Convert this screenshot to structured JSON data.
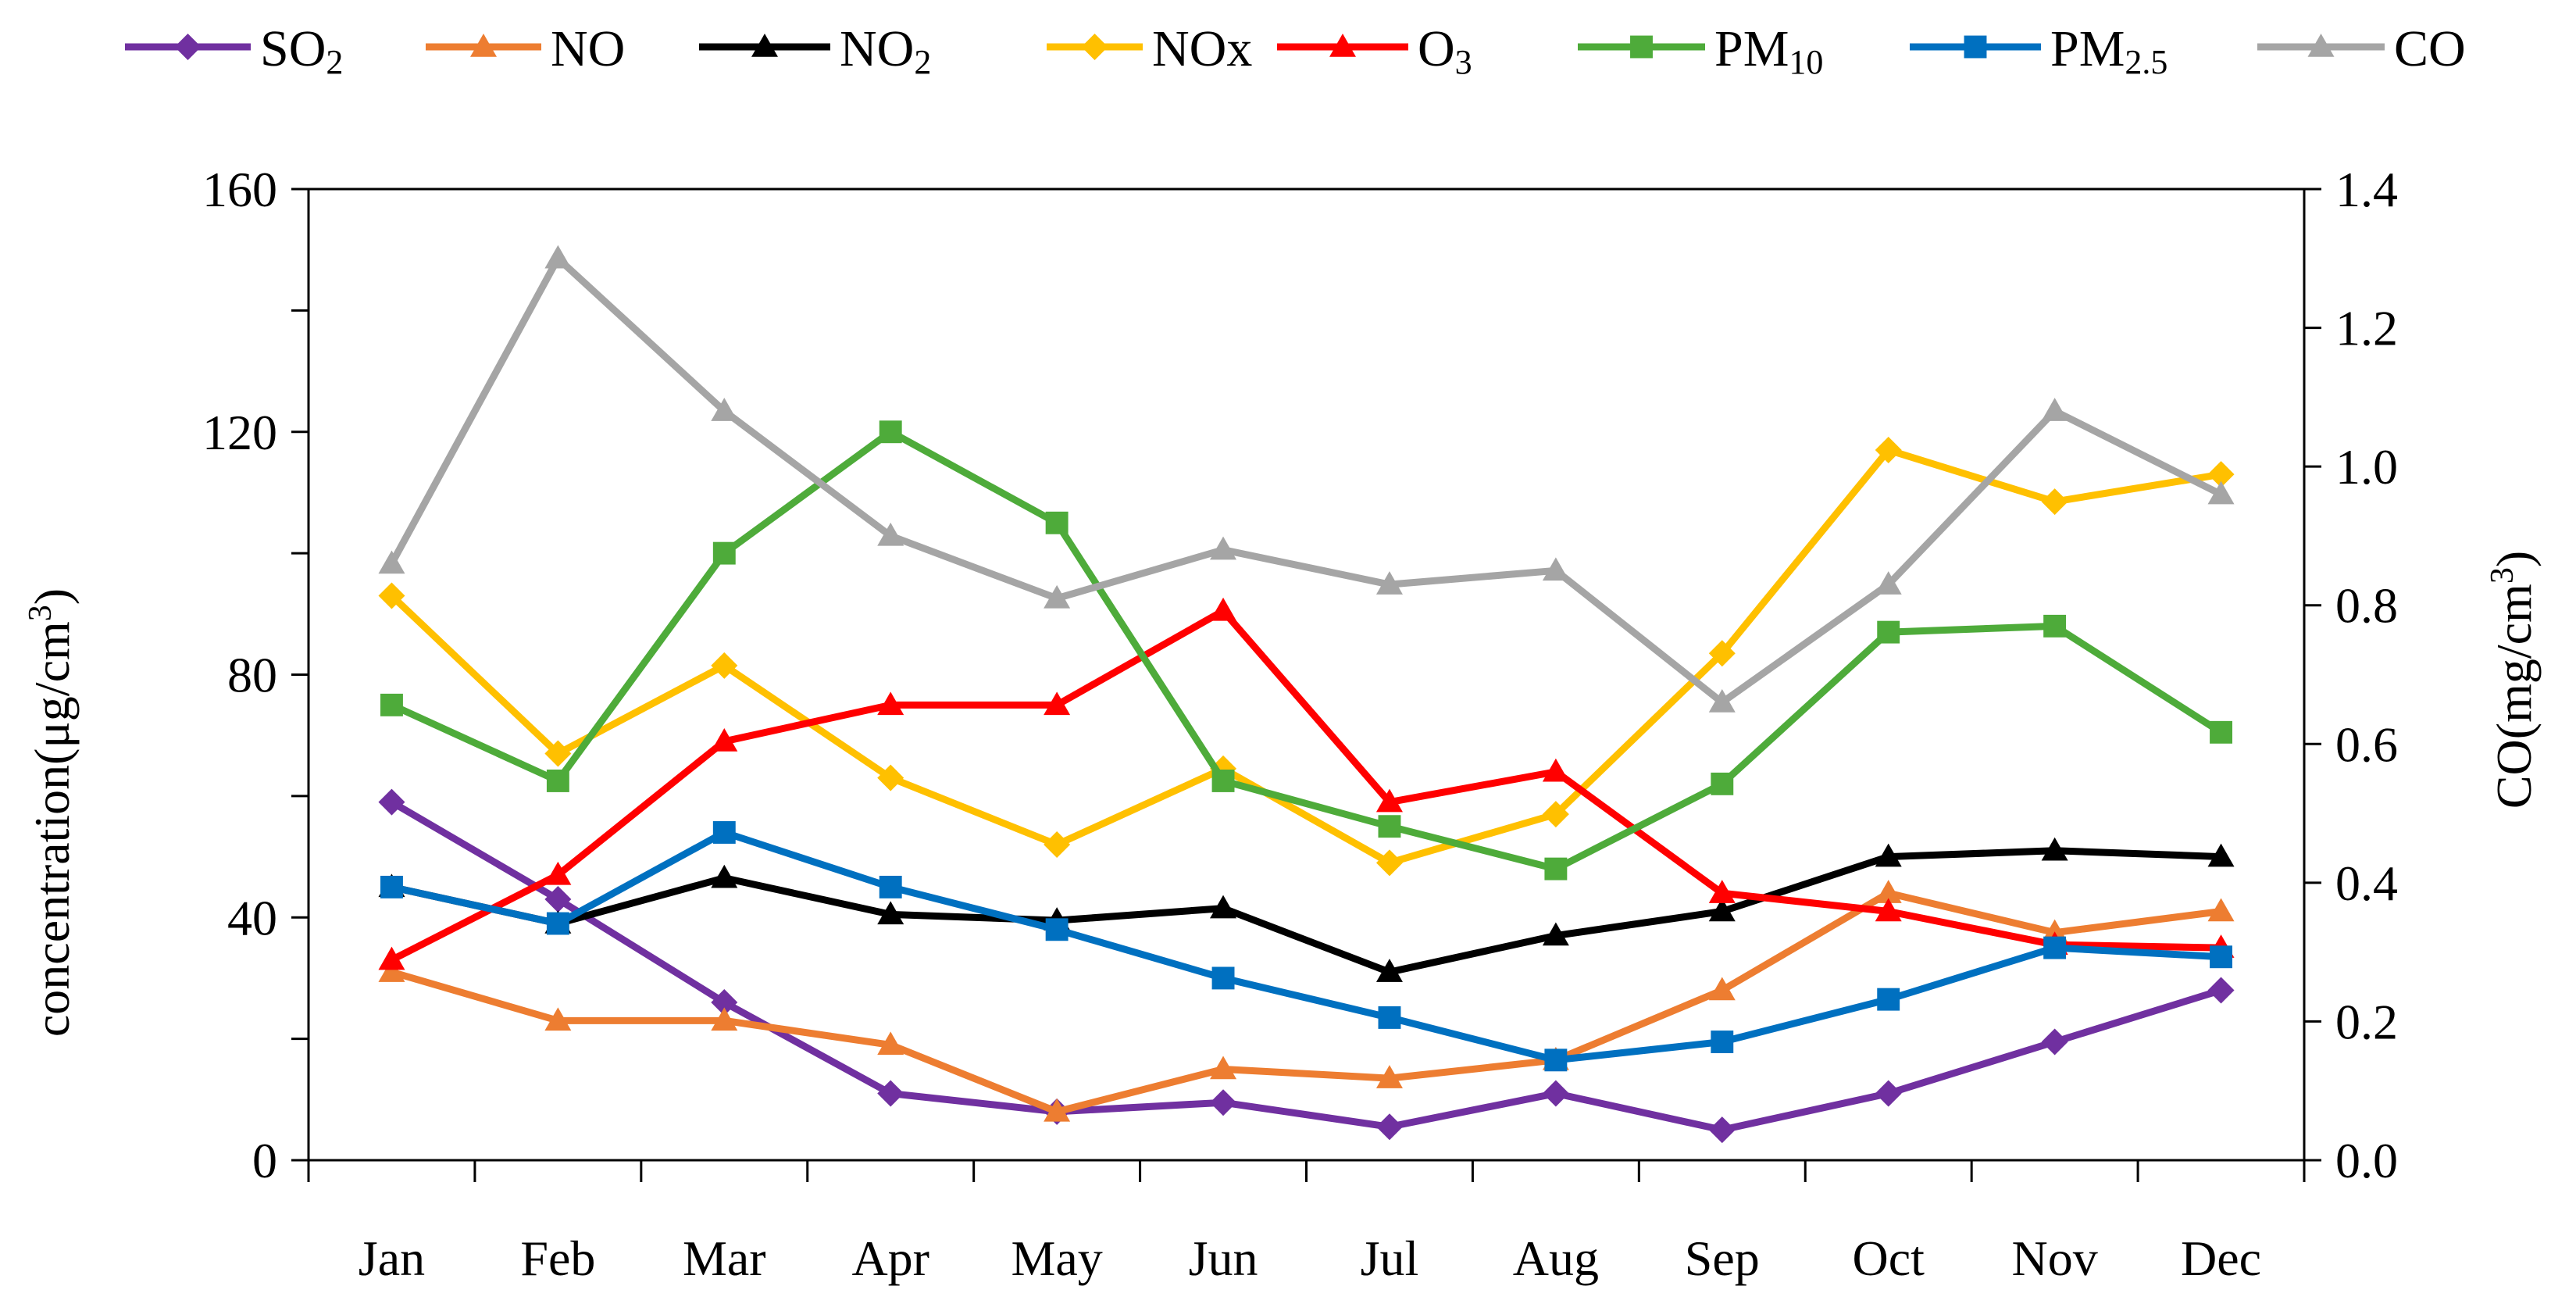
{
  "chart_data": {
    "type": "line",
    "categories": [
      "Jan",
      "Feb",
      "Mar",
      "Apr",
      "May",
      "Jun",
      "Jul",
      "Aug",
      "Sep",
      "Oct",
      "Nov",
      "Dec"
    ],
    "ylabel": "concentration(μg/cm",
    "ylabel_sup": "3",
    "ylabel_close": ")",
    "ylim": [
      0,
      160
    ],
    "yticks": [
      "0",
      "40",
      "80",
      "120",
      "160"
    ],
    "y2label": "CO(mg/cm",
    "y2label_sup": "3",
    "y2label_close": ")",
    "y2lim": [
      0,
      1.4
    ],
    "y2ticks": [
      "0.0",
      "0.2",
      "0.4",
      "0.6",
      "0.8",
      "1.0",
      "1.2",
      "1.4"
    ],
    "legend_position": "top",
    "series": [
      {
        "name": "SO",
        "sub": "2",
        "color": "#7030A0",
        "marker": "diamond",
        "axis": "left",
        "values": [
          59,
          43,
          26,
          11,
          8,
          9.5,
          5.5,
          11,
          5,
          11,
          19.5,
          28
        ]
      },
      {
        "name": "NO",
        "sub": "",
        "color": "#ED7D31",
        "marker": "triangle",
        "axis": "left",
        "values": [
          31,
          23,
          23,
          19,
          8,
          15,
          13.5,
          16.5,
          28,
          44,
          37.5,
          41
        ]
      },
      {
        "name": "NO",
        "sub": "2",
        "color": "#000000",
        "marker": "triangle",
        "axis": "left",
        "values": [
          45,
          39,
          46.5,
          40.5,
          39.5,
          41.5,
          31,
          37,
          41,
          50,
          51,
          50
        ]
      },
      {
        "name": "NOx",
        "sub": "",
        "color": "#FFC000",
        "marker": "diamond",
        "axis": "left",
        "values": [
          93,
          67,
          81.5,
          63,
          52,
          64.5,
          49,
          57,
          83.5,
          117,
          108.5,
          113
        ]
      },
      {
        "name": "O",
        "sub": "3",
        "color": "#FF0000",
        "marker": "triangle",
        "axis": "left",
        "values": [
          33,
          47,
          69,
          75,
          75,
          90.5,
          59,
          64,
          44,
          41,
          35.5,
          35
        ]
      },
      {
        "name": "PM",
        "sub": "10",
        "color": "#4EAB3A",
        "marker": "square",
        "axis": "left",
        "values": [
          75,
          62.5,
          100,
          120,
          105,
          62.5,
          55,
          48,
          62,
          87,
          88,
          70.5
        ]
      },
      {
        "name": "PM",
        "sub": "2.5",
        "color": "#0070C0",
        "marker": "square",
        "axis": "left",
        "values": [
          45,
          39,
          54,
          45,
          38,
          30,
          23.5,
          16.5,
          19.5,
          26.5,
          35,
          33.5
        ]
      },
      {
        "name": "CO",
        "sub": "",
        "color": "#A5A5A5",
        "marker": "triangle",
        "axis": "right",
        "values": [
          0.86,
          1.3,
          1.08,
          0.9,
          0.81,
          0.88,
          0.83,
          0.85,
          0.66,
          0.83,
          1.08,
          0.96
        ]
      }
    ]
  }
}
